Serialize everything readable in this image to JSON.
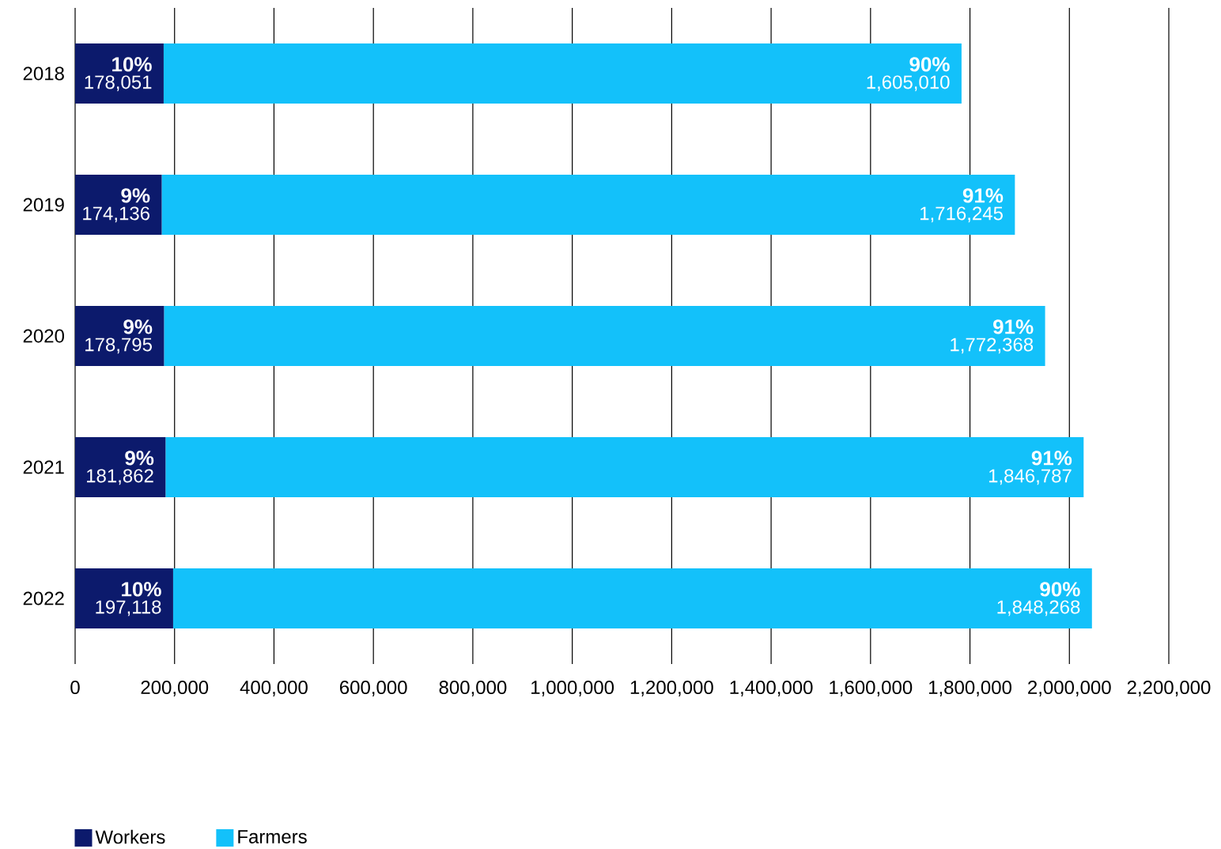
{
  "chart_data": {
    "type": "bar",
    "orientation": "horizontal",
    "stacked": true,
    "categories": [
      "2018",
      "2019",
      "2020",
      "2021",
      "2022"
    ],
    "series": [
      {
        "name": "Workers",
        "color": "#0c1a6c",
        "values": [
          178051,
          174136,
          178795,
          181862,
          197118
        ],
        "value_labels": [
          "178,051",
          "174,136",
          "178,795",
          "181,862",
          "197,118"
        ]
      },
      {
        "name": "Farmers",
        "color": "#13c1fa",
        "values": [
          1605010,
          1716245,
          1772368,
          1846787,
          1848268
        ],
        "value_labels": [
          "1,605,010",
          "1,716,245",
          "1,772,368",
          "1,846,787",
          "1,848,268"
        ]
      }
    ],
    "annotations": [
      {
        "text": "10%",
        "x": 178051,
        "y": "2018"
      },
      {
        "text": "9%",
        "x": 174136,
        "y": "2019"
      },
      {
        "text": "9%",
        "x": 178795,
        "y": "2020"
      },
      {
        "text": "9%",
        "x": 181862,
        "y": "2021"
      },
      {
        "text": "10%",
        "x": 197118,
        "y": "2022"
      },
      {
        "text": "90%",
        "x": 1783061,
        "y": "2018"
      },
      {
        "text": "91%",
        "x": 1890381,
        "y": "2019"
      },
      {
        "text": "91%",
        "x": 1951163,
        "y": "2020"
      },
      {
        "text": "91%",
        "x": 2028649,
        "y": "2021"
      },
      {
        "text": "90%",
        "x": 2045386,
        "y": "2022"
      }
    ],
    "xlim": [
      0,
      2200000
    ],
    "xticks": [
      0,
      {
        "value": 200000,
        "label": "200,000"
      },
      {
        "value": 400000,
        "label": "400,000"
      },
      {
        "value": 600000,
        "label": "600,000"
      },
      {
        "value": 800000,
        "label": "800,000"
      },
      {
        "value": 1000000,
        "label": "1,000,000"
      },
      {
        "value": 1200000,
        "label": "1,200,000"
      },
      {
        "value": 1400000,
        "label": "1,400,000"
      },
      {
        "value": 1600000,
        "label": "1,600,000"
      },
      {
        "value": 1800000,
        "label": "1,800,000"
      },
      {
        "value": 2000000,
        "label": "2,000,000"
      },
      {
        "value": 2200000,
        "label": "2,200,000"
      }
    ],
    "grid": "x",
    "legend": "bottom left"
  }
}
